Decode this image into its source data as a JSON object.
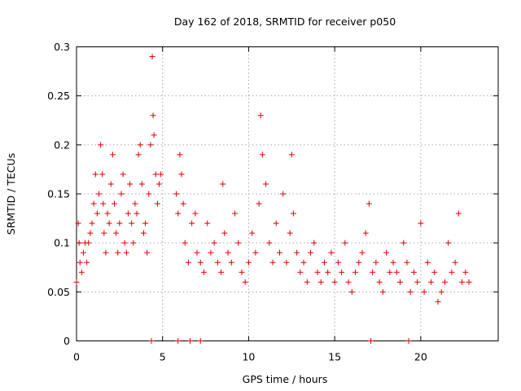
{
  "chart_data": {
    "type": "scatter",
    "title": "Day 162 of 2018, SRMTID for receiver p050",
    "xlabel": "GPS time / hours",
    "ylabel": "SRMTID / TECUs",
    "xlim": [
      0,
      24.5
    ],
    "ylim": [
      0,
      0.3
    ],
    "x_ticks": [
      0,
      5,
      10,
      15,
      20
    ],
    "x_tick_labels": [
      "0",
      "5",
      "10",
      "15",
      "20"
    ],
    "y_ticks": [
      0,
      0.05,
      0.1,
      0.15,
      0.2,
      0.25,
      0.3
    ],
    "y_tick_labels": [
      "0",
      "0.05",
      "0.1",
      "0.15",
      "0.2",
      "0.25",
      "0.3"
    ],
    "grid": true,
    "marker": "plus",
    "color": "#e00000",
    "series": [
      {
        "name": "SRMTID",
        "x": [
          0.0,
          0.1,
          0.15,
          0.2,
          0.3,
          0.4,
          0.5,
          0.6,
          0.7,
          0.8,
          0.9,
          1.0,
          1.1,
          1.2,
          1.3,
          1.4,
          1.5,
          1.55,
          1.6,
          1.7,
          1.8,
          1.9,
          2.0,
          2.1,
          2.2,
          2.3,
          2.4,
          2.5,
          2.6,
          2.7,
          2.8,
          2.9,
          3.0,
          3.1,
          3.2,
          3.3,
          3.4,
          3.5,
          3.6,
          3.7,
          3.8,
          3.9,
          4.0,
          4.1,
          4.2,
          4.3,
          4.4,
          4.45,
          4.5,
          4.6,
          4.7,
          4.8,
          4.9,
          5.8,
          5.9,
          6.0,
          6.1,
          6.2,
          6.3,
          6.5,
          6.7,
          6.9,
          7.0,
          7.2,
          7.4,
          7.6,
          7.8,
          8.0,
          8.2,
          8.4,
          8.5,
          8.6,
          8.8,
          9.0,
          9.2,
          9.4,
          9.6,
          9.8,
          10.0,
          10.2,
          10.4,
          10.6,
          10.7,
          10.8,
          11.0,
          11.2,
          11.4,
          11.6,
          11.8,
          12.0,
          12.2,
          12.4,
          12.5,
          12.6,
          12.8,
          13.0,
          13.2,
          13.4,
          13.6,
          13.8,
          14.0,
          14.2,
          14.4,
          14.6,
          14.8,
          15.0,
          15.2,
          15.4,
          15.6,
          15.8,
          16.0,
          16.2,
          16.4,
          16.6,
          16.8,
          17.0,
          17.2,
          17.4,
          17.6,
          17.8,
          18.0,
          18.2,
          18.4,
          18.6,
          18.8,
          19.0,
          19.2,
          19.4,
          19.6,
          19.8,
          20.0,
          20.2,
          20.4,
          20.6,
          20.8,
          21.0,
          21.2,
          21.4,
          21.6,
          21.8,
          22.0,
          22.2,
          22.4,
          22.6,
          22.8,
          4.35,
          5.9,
          6.6,
          7.2,
          17.1,
          19.3
        ],
        "y": [
          0.06,
          0.12,
          0.1,
          0.08,
          0.07,
          0.09,
          0.1,
          0.08,
          0.1,
          0.11,
          0.12,
          0.14,
          0.17,
          0.13,
          0.15,
          0.2,
          0.17,
          0.14,
          0.11,
          0.09,
          0.13,
          0.12,
          0.16,
          0.19,
          0.14,
          0.11,
          0.09,
          0.12,
          0.15,
          0.17,
          0.1,
          0.09,
          0.13,
          0.16,
          0.12,
          0.1,
          0.14,
          0.13,
          0.19,
          0.2,
          0.16,
          0.11,
          0.12,
          0.09,
          0.15,
          0.2,
          0.29,
          0.23,
          0.21,
          0.17,
          0.14,
          0.16,
          0.17,
          0.15,
          0.13,
          0.19,
          0.17,
          0.14,
          0.1,
          0.08,
          0.12,
          0.13,
          0.09,
          0.08,
          0.07,
          0.12,
          0.09,
          0.1,
          0.08,
          0.07,
          0.16,
          0.11,
          0.09,
          0.08,
          0.13,
          0.1,
          0.07,
          0.06,
          0.08,
          0.11,
          0.09,
          0.14,
          0.23,
          0.19,
          0.16,
          0.1,
          0.08,
          0.12,
          0.09,
          0.15,
          0.08,
          0.11,
          0.19,
          0.13,
          0.09,
          0.07,
          0.08,
          0.06,
          0.09,
          0.1,
          0.07,
          0.06,
          0.08,
          0.07,
          0.09,
          0.06,
          0.08,
          0.07,
          0.1,
          0.06,
          0.05,
          0.07,
          0.08,
          0.09,
          0.11,
          0.14,
          0.07,
          0.08,
          0.06,
          0.05,
          0.09,
          0.07,
          0.08,
          0.07,
          0.06,
          0.1,
          0.08,
          0.05,
          0.07,
          0.06,
          0.12,
          0.05,
          0.08,
          0.06,
          0.07,
          0.04,
          0.05,
          0.06,
          0.1,
          0.07,
          0.08,
          0.13,
          0.06,
          0.07,
          0.06,
          0.0,
          0.0,
          0.0,
          0.0,
          0.0,
          0.0
        ]
      }
    ]
  }
}
